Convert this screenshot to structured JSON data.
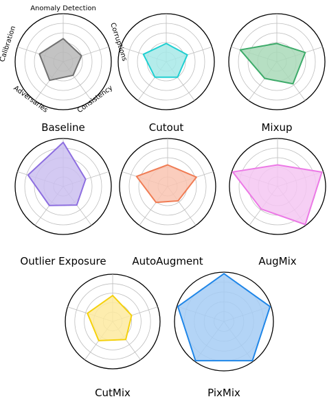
{
  "chart_data": {
    "type": "radar",
    "axes": [
      "Anomaly Detection",
      "Corruptions",
      "Consistency",
      "Adversaries",
      "Calibration"
    ],
    "rlim": [
      0,
      1
    ],
    "rings": [
      0.2,
      0.4,
      0.6,
      0.8,
      1.0
    ],
    "grid": true,
    "charts": [
      {
        "title": "Baseline",
        "color": "#707070",
        "fill": "#b9b9b9",
        "values": [
          0.48,
          0.4,
          0.35,
          0.48,
          0.52
        ]
      },
      {
        "title": "Cutout",
        "color": "#1ecfd1",
        "fill": "#a7e9e7",
        "values": [
          0.38,
          0.46,
          0.4,
          0.4,
          0.5
        ]
      },
      {
        "title": "Mixup",
        "color": "#3dab6a",
        "fill": "#a9d9b8",
        "values": [
          0.38,
          0.62,
          0.57,
          0.43,
          0.8
        ]
      },
      {
        "title": "Outlier Exposure",
        "color": "#8d6ee0",
        "fill": "#cbbff0",
        "values": [
          0.92,
          0.49,
          0.48,
          0.49,
          0.77
        ]
      },
      {
        "title": "AutoAugment",
        "color": "#f07c54",
        "fill": "#f9c4b2",
        "values": [
          0.45,
          0.63,
          0.37,
          0.41,
          0.68
        ]
      },
      {
        "title": "AugMix",
        "color": "#ec79e6",
        "fill": "#f5c7f2",
        "values": [
          0.45,
          0.97,
          0.98,
          0.58,
          0.98
        ]
      },
      {
        "title": "CutMix",
        "color": "#f5d10d",
        "fill": "#fdeaa0",
        "values": [
          0.55,
          0.42,
          0.47,
          0.5,
          0.56
        ]
      },
      {
        "title": "PixMix",
        "color": "#1f86e8",
        "fill": "#a6ccf4",
        "values": [
          0.97,
          0.98,
          0.98,
          0.98,
          0.98
        ]
      }
    ]
  }
}
